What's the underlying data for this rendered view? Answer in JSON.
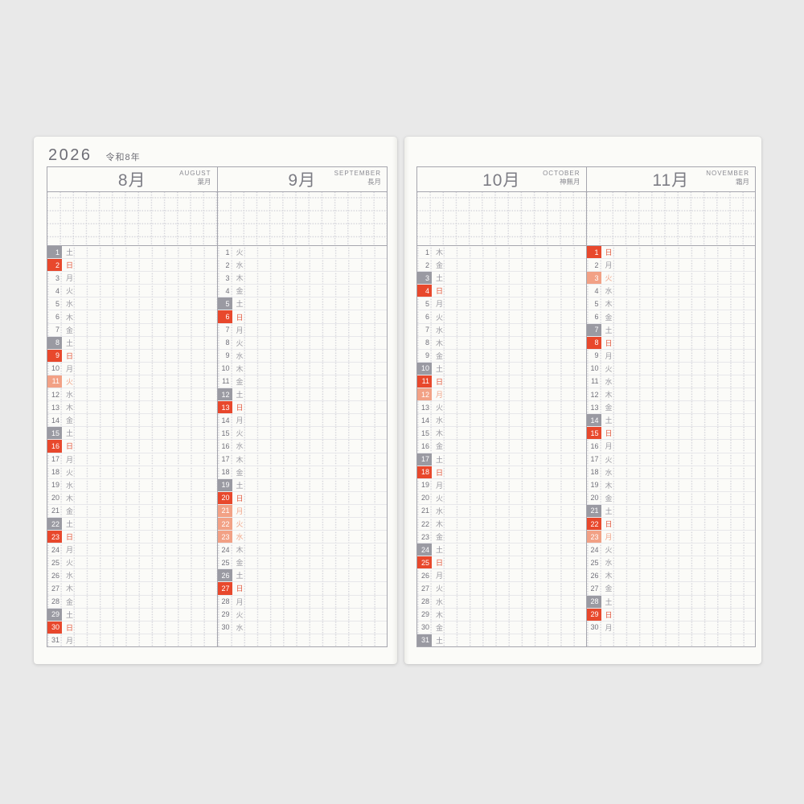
{
  "year_header": {
    "year": "2026",
    "era": "令和8年"
  },
  "colors": {
    "page_background": "#e9e9e9",
    "paper": "#fbfbf8",
    "saturday_box": "#9a9aa2",
    "sunday_box": "#e8482c",
    "holiday_box": "#f2a185",
    "sunday_text": "#e25a40",
    "holiday_text": "#f0a78c",
    "table_border": "#a6a6ae",
    "row_line": "#e7e7ea",
    "grid_dot": "#d6d6dc"
  },
  "months": [
    {
      "name_jp": "8月",
      "name_en": "AUGUST",
      "name_old": "葉月",
      "days": [
        {
          "d": 1,
          "w": "土",
          "t": "sat"
        },
        {
          "d": 2,
          "w": "日",
          "t": "sun"
        },
        {
          "d": 3,
          "w": "月",
          "t": ""
        },
        {
          "d": 4,
          "w": "火",
          "t": ""
        },
        {
          "d": 5,
          "w": "水",
          "t": ""
        },
        {
          "d": 6,
          "w": "木",
          "t": ""
        },
        {
          "d": 7,
          "w": "金",
          "t": ""
        },
        {
          "d": 8,
          "w": "土",
          "t": "sat"
        },
        {
          "d": 9,
          "w": "日",
          "t": "sun"
        },
        {
          "d": 10,
          "w": "月",
          "t": ""
        },
        {
          "d": 11,
          "w": "火",
          "t": "hol"
        },
        {
          "d": 12,
          "w": "水",
          "t": ""
        },
        {
          "d": 13,
          "w": "木",
          "t": ""
        },
        {
          "d": 14,
          "w": "金",
          "t": ""
        },
        {
          "d": 15,
          "w": "土",
          "t": "sat"
        },
        {
          "d": 16,
          "w": "日",
          "t": "sun"
        },
        {
          "d": 17,
          "w": "月",
          "t": ""
        },
        {
          "d": 18,
          "w": "火",
          "t": ""
        },
        {
          "d": 19,
          "w": "水",
          "t": ""
        },
        {
          "d": 20,
          "w": "木",
          "t": ""
        },
        {
          "d": 21,
          "w": "金",
          "t": ""
        },
        {
          "d": 22,
          "w": "土",
          "t": "sat"
        },
        {
          "d": 23,
          "w": "日",
          "t": "sun"
        },
        {
          "d": 24,
          "w": "月",
          "t": ""
        },
        {
          "d": 25,
          "w": "火",
          "t": ""
        },
        {
          "d": 26,
          "w": "水",
          "t": ""
        },
        {
          "d": 27,
          "w": "木",
          "t": ""
        },
        {
          "d": 28,
          "w": "金",
          "t": ""
        },
        {
          "d": 29,
          "w": "土",
          "t": "sat"
        },
        {
          "d": 30,
          "w": "日",
          "t": "sun"
        },
        {
          "d": 31,
          "w": "月",
          "t": ""
        }
      ]
    },
    {
      "name_jp": "9月",
      "name_en": "SEPTEMBER",
      "name_old": "長月",
      "days": [
        {
          "d": 1,
          "w": "火",
          "t": ""
        },
        {
          "d": 2,
          "w": "水",
          "t": ""
        },
        {
          "d": 3,
          "w": "木",
          "t": ""
        },
        {
          "d": 4,
          "w": "金",
          "t": ""
        },
        {
          "d": 5,
          "w": "土",
          "t": "sat"
        },
        {
          "d": 6,
          "w": "日",
          "t": "sun"
        },
        {
          "d": 7,
          "w": "月",
          "t": ""
        },
        {
          "d": 8,
          "w": "火",
          "t": ""
        },
        {
          "d": 9,
          "w": "水",
          "t": ""
        },
        {
          "d": 10,
          "w": "木",
          "t": ""
        },
        {
          "d": 11,
          "w": "金",
          "t": ""
        },
        {
          "d": 12,
          "w": "土",
          "t": "sat"
        },
        {
          "d": 13,
          "w": "日",
          "t": "sun"
        },
        {
          "d": 14,
          "w": "月",
          "t": ""
        },
        {
          "d": 15,
          "w": "火",
          "t": ""
        },
        {
          "d": 16,
          "w": "水",
          "t": ""
        },
        {
          "d": 17,
          "w": "木",
          "t": ""
        },
        {
          "d": 18,
          "w": "金",
          "t": ""
        },
        {
          "d": 19,
          "w": "土",
          "t": "sat"
        },
        {
          "d": 20,
          "w": "日",
          "t": "sun"
        },
        {
          "d": 21,
          "w": "月",
          "t": "hol"
        },
        {
          "d": 22,
          "w": "火",
          "t": "hol"
        },
        {
          "d": 23,
          "w": "水",
          "t": "hol"
        },
        {
          "d": 24,
          "w": "木",
          "t": ""
        },
        {
          "d": 25,
          "w": "金",
          "t": ""
        },
        {
          "d": 26,
          "w": "土",
          "t": "sat"
        },
        {
          "d": 27,
          "w": "日",
          "t": "sun"
        },
        {
          "d": 28,
          "w": "月",
          "t": ""
        },
        {
          "d": 29,
          "w": "火",
          "t": ""
        },
        {
          "d": 30,
          "w": "水",
          "t": ""
        }
      ]
    },
    {
      "name_jp": "10月",
      "name_en": "OCTOBER",
      "name_old": "神無月",
      "days": [
        {
          "d": 1,
          "w": "木",
          "t": ""
        },
        {
          "d": 2,
          "w": "金",
          "t": ""
        },
        {
          "d": 3,
          "w": "土",
          "t": "sat"
        },
        {
          "d": 4,
          "w": "日",
          "t": "sun"
        },
        {
          "d": 5,
          "w": "月",
          "t": ""
        },
        {
          "d": 6,
          "w": "火",
          "t": ""
        },
        {
          "d": 7,
          "w": "水",
          "t": ""
        },
        {
          "d": 8,
          "w": "木",
          "t": ""
        },
        {
          "d": 9,
          "w": "金",
          "t": ""
        },
        {
          "d": 10,
          "w": "土",
          "t": "sat"
        },
        {
          "d": 11,
          "w": "日",
          "t": "sun"
        },
        {
          "d": 12,
          "w": "月",
          "t": "hol"
        },
        {
          "d": 13,
          "w": "火",
          "t": ""
        },
        {
          "d": 14,
          "w": "水",
          "t": ""
        },
        {
          "d": 15,
          "w": "木",
          "t": ""
        },
        {
          "d": 16,
          "w": "金",
          "t": ""
        },
        {
          "d": 17,
          "w": "土",
          "t": "sat"
        },
        {
          "d": 18,
          "w": "日",
          "t": "sun"
        },
        {
          "d": 19,
          "w": "月",
          "t": ""
        },
        {
          "d": 20,
          "w": "火",
          "t": ""
        },
        {
          "d": 21,
          "w": "水",
          "t": ""
        },
        {
          "d": 22,
          "w": "木",
          "t": ""
        },
        {
          "d": 23,
          "w": "金",
          "t": ""
        },
        {
          "d": 24,
          "w": "土",
          "t": "sat"
        },
        {
          "d": 25,
          "w": "日",
          "t": "sun"
        },
        {
          "d": 26,
          "w": "月",
          "t": ""
        },
        {
          "d": 27,
          "w": "火",
          "t": ""
        },
        {
          "d": 28,
          "w": "水",
          "t": ""
        },
        {
          "d": 29,
          "w": "木",
          "t": ""
        },
        {
          "d": 30,
          "w": "金",
          "t": ""
        },
        {
          "d": 31,
          "w": "土",
          "t": "sat"
        }
      ]
    },
    {
      "name_jp": "11月",
      "name_en": "NOVEMBER",
      "name_old": "霜月",
      "days": [
        {
          "d": 1,
          "w": "日",
          "t": "sun"
        },
        {
          "d": 2,
          "w": "月",
          "t": ""
        },
        {
          "d": 3,
          "w": "火",
          "t": "hol"
        },
        {
          "d": 4,
          "w": "水",
          "t": ""
        },
        {
          "d": 5,
          "w": "木",
          "t": ""
        },
        {
          "d": 6,
          "w": "金",
          "t": ""
        },
        {
          "d": 7,
          "w": "土",
          "t": "sat"
        },
        {
          "d": 8,
          "w": "日",
          "t": "sun"
        },
        {
          "d": 9,
          "w": "月",
          "t": ""
        },
        {
          "d": 10,
          "w": "火",
          "t": ""
        },
        {
          "d": 11,
          "w": "水",
          "t": ""
        },
        {
          "d": 12,
          "w": "木",
          "t": ""
        },
        {
          "d": 13,
          "w": "金",
          "t": ""
        },
        {
          "d": 14,
          "w": "土",
          "t": "sat"
        },
        {
          "d": 15,
          "w": "日",
          "t": "sun"
        },
        {
          "d": 16,
          "w": "月",
          "t": ""
        },
        {
          "d": 17,
          "w": "火",
          "t": ""
        },
        {
          "d": 18,
          "w": "水",
          "t": ""
        },
        {
          "d": 19,
          "w": "木",
          "t": ""
        },
        {
          "d": 20,
          "w": "金",
          "t": ""
        },
        {
          "d": 21,
          "w": "土",
          "t": "sat"
        },
        {
          "d": 22,
          "w": "日",
          "t": "sun"
        },
        {
          "d": 23,
          "w": "月",
          "t": "hol"
        },
        {
          "d": 24,
          "w": "火",
          "t": ""
        },
        {
          "d": 25,
          "w": "水",
          "t": ""
        },
        {
          "d": 26,
          "w": "木",
          "t": ""
        },
        {
          "d": 27,
          "w": "金",
          "t": ""
        },
        {
          "d": 28,
          "w": "土",
          "t": "sat"
        },
        {
          "d": 29,
          "w": "日",
          "t": "sun"
        },
        {
          "d": 30,
          "w": "月",
          "t": ""
        }
      ]
    }
  ]
}
